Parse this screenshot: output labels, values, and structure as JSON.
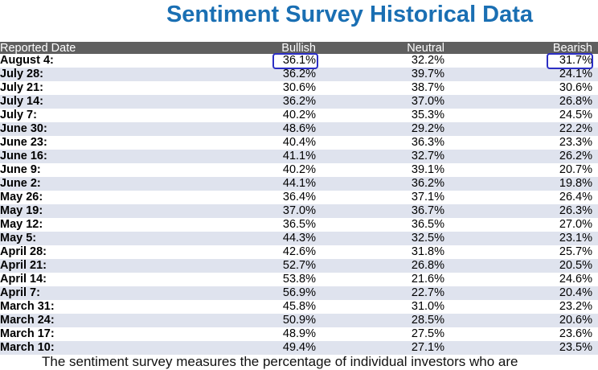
{
  "title": "Sentiment Survey Historical Data",
  "table": {
    "headers": {
      "date": "Reported Date",
      "bullish": "Bullish",
      "neutral": "Neutral",
      "bearish": "Bearish"
    },
    "rows": [
      {
        "date": "August 4:",
        "bullish": "36.1%",
        "neutral": "32.2%",
        "bearish": "31.7%"
      },
      {
        "date": "July 28:",
        "bullish": "36.2%",
        "neutral": "39.7%",
        "bearish": "24.1%"
      },
      {
        "date": "July 21:",
        "bullish": "30.6%",
        "neutral": "38.7%",
        "bearish": "30.6%"
      },
      {
        "date": "July 14:",
        "bullish": "36.2%",
        "neutral": "37.0%",
        "bearish": "26.8%"
      },
      {
        "date": "July 7:",
        "bullish": "40.2%",
        "neutral": "35.3%",
        "bearish": "24.5%"
      },
      {
        "date": "June 30:",
        "bullish": "48.6%",
        "neutral": "29.2%",
        "bearish": "22.2%"
      },
      {
        "date": "June 23:",
        "bullish": "40.4%",
        "neutral": "36.3%",
        "bearish": "23.3%"
      },
      {
        "date": "June 16:",
        "bullish": "41.1%",
        "neutral": "32.7%",
        "bearish": "26.2%"
      },
      {
        "date": "June 9:",
        "bullish": "40.2%",
        "neutral": "39.1%",
        "bearish": "20.7%"
      },
      {
        "date": "June 2:",
        "bullish": "44.1%",
        "neutral": "36.2%",
        "bearish": "19.8%"
      },
      {
        "date": "May 26:",
        "bullish": "36.4%",
        "neutral": "37.1%",
        "bearish": "26.4%"
      },
      {
        "date": "May 19:",
        "bullish": "37.0%",
        "neutral": "36.7%",
        "bearish": "26.3%"
      },
      {
        "date": "May 12:",
        "bullish": "36.5%",
        "neutral": "36.5%",
        "bearish": "27.0%"
      },
      {
        "date": "May 5:",
        "bullish": "44.3%",
        "neutral": "32.5%",
        "bearish": "23.1%"
      },
      {
        "date": "April 28:",
        "bullish": "42.6%",
        "neutral": "31.8%",
        "bearish": "25.7%"
      },
      {
        "date": "April 21:",
        "bullish": "52.7%",
        "neutral": "26.8%",
        "bearish": "20.5%"
      },
      {
        "date": "April 14:",
        "bullish": "53.8%",
        "neutral": "21.6%",
        "bearish": "24.6%"
      },
      {
        "date": "April 7:",
        "bullish": "56.9%",
        "neutral": "22.7%",
        "bearish": "20.4%"
      },
      {
        "date": "March 31:",
        "bullish": "45.8%",
        "neutral": "31.0%",
        "bearish": "23.2%"
      },
      {
        "date": "March 24:",
        "bullish": "50.9%",
        "neutral": "28.5%",
        "bearish": "20.6%"
      },
      {
        "date": "March 17:",
        "bullish": "48.9%",
        "neutral": "27.5%",
        "bearish": "23.6%"
      },
      {
        "date": "March 10:",
        "bullish": "49.4%",
        "neutral": "27.1%",
        "bearish": "23.5%"
      }
    ]
  },
  "footer_text": "The sentiment survey measures the percentage of individual investors who are",
  "colors": {
    "title": "#1a6fb3",
    "header_bg": "#5f5f5f",
    "alt_row_bg": "#dfe3ee",
    "highlight_border": "#2c2fc4"
  }
}
